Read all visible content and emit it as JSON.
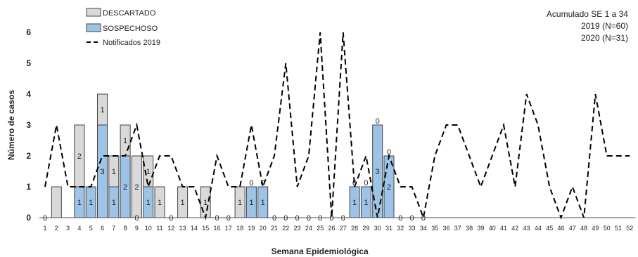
{
  "chart_data": {
    "type": "bar",
    "stacked": true,
    "x": [
      1,
      2,
      3,
      4,
      5,
      6,
      7,
      8,
      9,
      10,
      11,
      12,
      13,
      14,
      15,
      16,
      17,
      18,
      19,
      20,
      21,
      22,
      23,
      24,
      25,
      26,
      27,
      28,
      29,
      30,
      31,
      32,
      33,
      34,
      35,
      36,
      37,
      38,
      39,
      40,
      41,
      42,
      43,
      44,
      45,
      46,
      47,
      48,
      49,
      50,
      51,
      52
    ],
    "xlabel": "Semana Epidemiológica",
    "ylabel": "Número de casos",
    "ylim": [
      0,
      6
    ],
    "yticks": [
      0,
      1,
      2,
      3,
      4,
      5,
      6
    ],
    "series": [
      {
        "name": "SOSPECHOSO",
        "kind": "bar",
        "color": "#9dc3e6",
        "values": [
          0,
          0,
          0,
          1,
          1,
          3,
          1,
          2,
          0,
          1,
          0,
          0,
          0,
          0,
          0,
          0,
          0,
          0,
          1,
          1,
          0,
          0,
          0,
          0,
          0,
          0,
          0,
          1,
          1,
          3,
          2,
          0,
          0,
          0,
          null,
          null,
          null,
          null,
          null,
          null,
          null,
          null,
          null,
          null,
          null,
          null,
          null,
          null,
          null,
          null,
          null,
          null
        ],
        "labels": [
          0,
          null,
          null,
          1,
          1,
          3,
          1,
          2,
          0,
          1,
          null,
          0,
          null,
          null,
          null,
          0,
          0,
          null,
          1,
          1,
          0,
          0,
          0,
          0,
          0,
          0,
          0,
          1,
          1,
          3,
          2,
          0,
          0,
          0,
          null,
          null,
          null,
          null,
          null,
          null,
          null,
          null,
          null,
          null,
          null,
          null,
          null,
          null,
          null,
          null,
          null,
          null
        ]
      },
      {
        "name": "DESCARTADO",
        "kind": "bar",
        "color": "#d9d9d9",
        "values": [
          0,
          1,
          0,
          2,
          0,
          1,
          1,
          1,
          2,
          1,
          1,
          0,
          1,
          0,
          1,
          0,
          0,
          1,
          0,
          0,
          0,
          0,
          0,
          0,
          0,
          0,
          0,
          0,
          0,
          0,
          0,
          0,
          0,
          0,
          null,
          null,
          null,
          null,
          null,
          null,
          null,
          null,
          null,
          null,
          null,
          null,
          null,
          null,
          null,
          null,
          null,
          null
        ],
        "labels": [
          null,
          null,
          null,
          2,
          null,
          1,
          1,
          1,
          2,
          1,
          1,
          null,
          1,
          null,
          1,
          null,
          null,
          1,
          0,
          0,
          null,
          null,
          null,
          null,
          null,
          null,
          null,
          0,
          0,
          0,
          0,
          null,
          null,
          null,
          null,
          null,
          null,
          null,
          null,
          null,
          null,
          null,
          null,
          null,
          null,
          null,
          null,
          null,
          null,
          null,
          null,
          null
        ]
      },
      {
        "name": "Notificados  2019",
        "kind": "line",
        "dash": "dashed",
        "color": "#000000",
        "values": [
          1,
          3,
          1,
          1,
          1,
          2,
          2,
          2,
          3,
          1,
          2,
          2,
          1,
          1,
          0,
          2,
          1,
          1,
          3,
          1,
          2,
          5,
          1,
          2,
          6,
          0,
          6,
          1,
          2,
          0,
          2,
          1,
          1,
          0,
          2,
          3,
          3,
          2,
          1,
          2,
          3,
          1,
          4,
          3,
          1,
          0,
          1,
          0,
          4,
          2,
          2,
          2
        ]
      }
    ],
    "legend": {
      "position": "top-left",
      "entries": [
        "DESCARTADO",
        "SOSPECHOSO",
        "Notificados  2019"
      ]
    },
    "annotation": [
      "Acumulado SE 1 a 34",
      "2019 (N=60)",
      "2020 (N=31)"
    ],
    "grid": false
  }
}
